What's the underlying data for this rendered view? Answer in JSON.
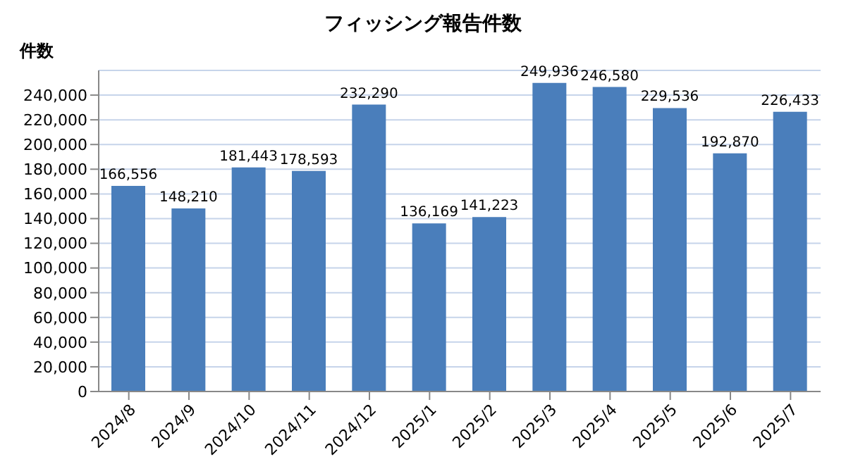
{
  "chart_data": {
    "type": "bar",
    "title": "フィッシング報告件数",
    "ylabel": "件数",
    "categories": [
      "2024/8",
      "2024/9",
      "2024/10",
      "2024/11",
      "2024/12",
      "2025/1",
      "2025/2",
      "2025/3",
      "2025/4",
      "2025/5",
      "2025/6",
      "2025/7"
    ],
    "values": [
      166556,
      148210,
      181443,
      178593,
      232290,
      136169,
      141223,
      249936,
      246580,
      229536,
      192870,
      226433
    ],
    "value_labels": [
      "166,556",
      "148,210",
      "181,443",
      "178,593",
      "232,290",
      "136,169",
      "141,223",
      "249,936",
      "246,580",
      "229,536",
      "192,870",
      "226,433"
    ],
    "color": "#4a7ebb",
    "ylim": [
      0,
      260000
    ],
    "yticks": [
      0,
      {
        "value": 20000,
        "label": "20,000"
      },
      {
        "value": 40000,
        "label": "40,000"
      },
      {
        "value": 60000,
        "label": "60,000"
      },
      {
        "value": 80000,
        "label": "80,000"
      },
      {
        "value": 100000,
        "label": "100,000"
      },
      {
        "value": 120000,
        "label": "120,000"
      },
      {
        "value": 140000,
        "label": "140,000"
      },
      {
        "value": 160000,
        "label": "160,000"
      },
      {
        "value": 180000,
        "label": "180,000"
      },
      {
        "value": 200000,
        "label": "200,000"
      },
      {
        "value": 220000,
        "label": "220,000"
      },
      {
        "value": 240000,
        "label": "240,000"
      }
    ],
    "grid": "y"
  }
}
